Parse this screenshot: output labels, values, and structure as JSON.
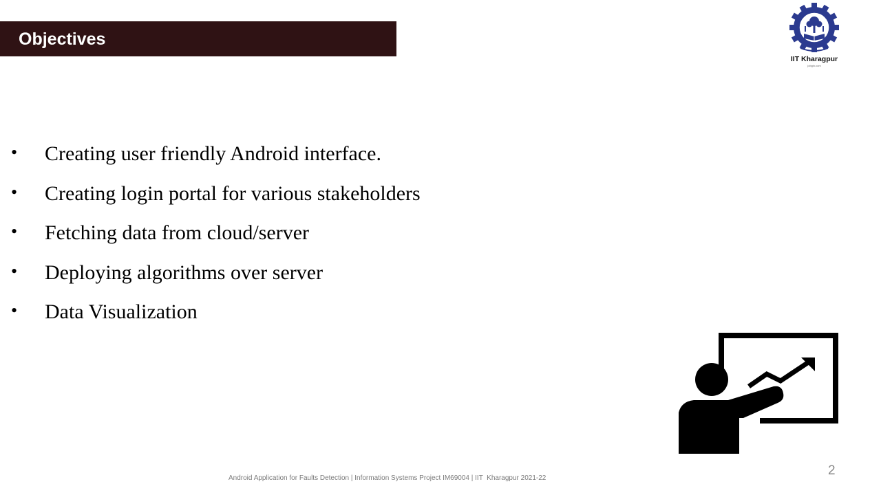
{
  "slide": {
    "title": "Objectives",
    "bullets": [
      "Creating user friendly Android interface.",
      "Creating login portal for various stakeholders",
      "Fetching data from cloud/server",
      "Deploying algorithms over server",
      "Data Visualization"
    ],
    "bullet_symbol": "•",
    "footer": "Android Application for Faults Detection | Information Systems Project IM69004 | IIT  Kharagpur 2021-22",
    "page_number": "2"
  },
  "logo": {
    "name": "IIT Kharagpur",
    "sub": "jobgin.com",
    "icon": "iit-kharagpur-emblem-icon"
  },
  "illustration": {
    "icon": "presenter-chart-icon"
  },
  "colors": {
    "title_bar": "#2f1214",
    "title_text": "#ffffff",
    "logo_blue": "#2b3a8f",
    "footer_text": "#7a7a7a"
  }
}
